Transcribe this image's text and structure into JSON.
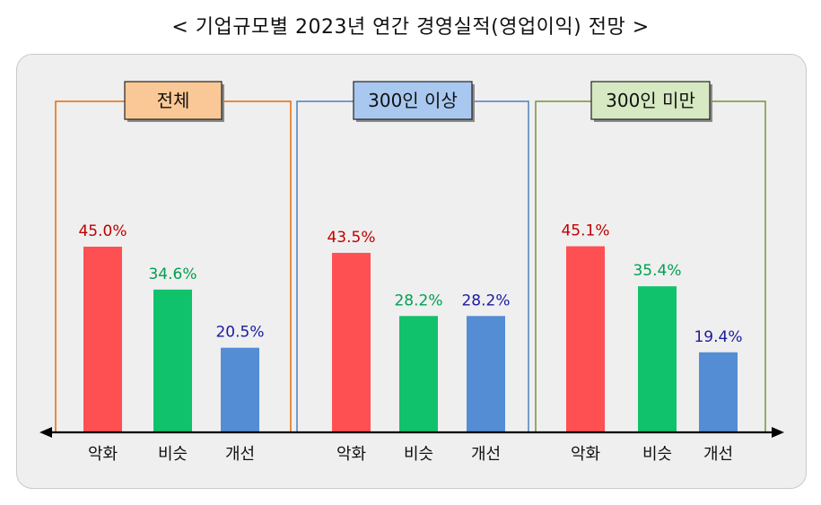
{
  "title": "< 기업규모별 2023년 연간 경영실적(영업이익) 전망 >",
  "colors": {
    "악화": "#fe5052",
    "비슷": "#11c26c",
    "개선": "#548dd4",
    "label_악화": "#c00000",
    "label_비슷": "#00a050",
    "label_개선": "#1a1aa0"
  },
  "chart_data": [
    {
      "type": "bar",
      "title": "전체",
      "categories": [
        "악화",
        "비슷",
        "개선"
      ],
      "values": [
        45.0,
        34.6,
        20.5
      ],
      "value_labels": [
        "45.0%",
        "34.6%",
        "20.5%"
      ],
      "frame_color": "#e36c09",
      "box_fill": "#fac896"
    },
    {
      "type": "bar",
      "title": "300인 이상",
      "categories": [
        "악화",
        "비슷",
        "개선"
      ],
      "values": [
        43.5,
        28.2,
        28.2
      ],
      "value_labels": [
        "43.5%",
        "28.2%",
        "28.2%"
      ],
      "frame_color": "#4f81bd",
      "box_fill": "#a9c8ef"
    },
    {
      "type": "bar",
      "title": "300인 미만",
      "categories": [
        "악화",
        "비슷",
        "개선"
      ],
      "values": [
        45.1,
        35.4,
        19.4
      ],
      "value_labels": [
        "45.1%",
        "35.4%",
        "19.4%"
      ],
      "frame_color": "#77933c",
      "box_fill": "#d6e9c2"
    }
  ]
}
